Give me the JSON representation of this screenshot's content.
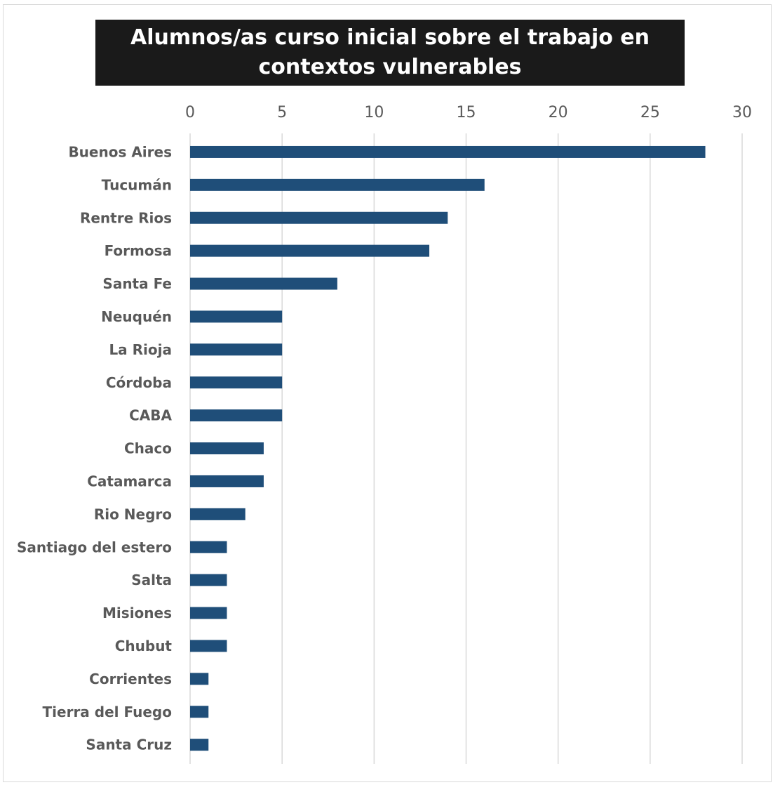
{
  "chart_data": {
    "type": "bar",
    "orientation": "horizontal",
    "title": "Alumnos/as curso inicial sobre el trabajo en contextos vulnerables",
    "xlabel": "",
    "ylabel": "",
    "xlim": [
      0,
      30
    ],
    "x_ticks": [
      "0",
      "5",
      "10",
      "15",
      "20",
      "25",
      "30"
    ],
    "x_axis_position": "top",
    "grid": true,
    "legend": "none",
    "bar_color": "#1f4e79",
    "categories": [
      "Buenos Aires",
      "Tucumán",
      "Rentre Rios",
      "Formosa",
      "Santa Fe",
      "Neuquén",
      "La Rioja",
      "Córdoba",
      "CABA",
      "Chaco",
      "Catamarca",
      "Rio Negro",
      "Santiago del estero",
      "Salta",
      "Misiones",
      "Chubut",
      "Corrientes",
      "Tierra del Fuego",
      "Santa Cruz"
    ],
    "values": [
      28,
      16,
      14,
      13,
      8,
      5,
      5,
      5,
      5,
      4,
      4,
      3,
      2,
      2,
      2,
      2,
      1,
      1,
      1
    ]
  }
}
